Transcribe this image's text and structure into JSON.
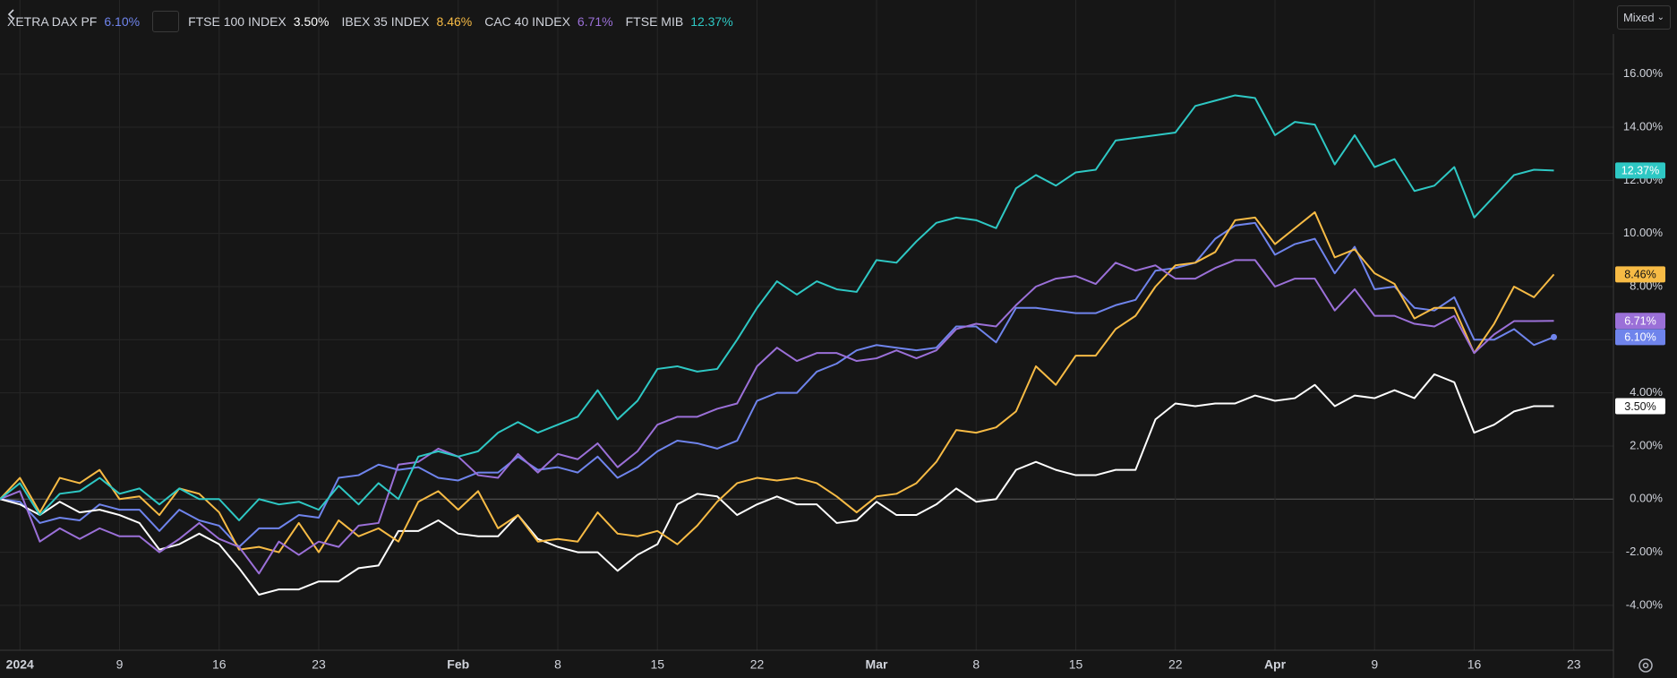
{
  "toolbar": {
    "mode": "Mixed"
  },
  "chart_data": {
    "type": "line",
    "categories": [
      null,
      "2024",
      null,
      null,
      null,
      null,
      "9",
      null,
      null,
      null,
      null,
      "16",
      null,
      null,
      null,
      null,
      "23",
      null,
      null,
      null,
      null,
      null,
      null,
      "Feb",
      null,
      null,
      null,
      null,
      "8",
      null,
      null,
      null,
      null,
      "15",
      null,
      null,
      null,
      null,
      "22",
      null,
      null,
      null,
      null,
      null,
      "Mar",
      null,
      null,
      null,
      null,
      "8",
      null,
      null,
      null,
      null,
      "15",
      null,
      null,
      null,
      null,
      "22",
      null,
      null,
      null,
      null,
      "Apr",
      null,
      null,
      null,
      null,
      "9",
      null,
      null,
      null,
      null,
      "16",
      null,
      null,
      null,
      null,
      "23"
    ],
    "ylim": [
      -5.69,
      18.79
    ],
    "yticks": [
      {
        "value": -4,
        "label": "-4.00%"
      },
      {
        "value": -2,
        "label": "-2.00%"
      },
      {
        "value": 0,
        "label": "0.00%"
      },
      {
        "value": 2,
        "label": "2.00%"
      },
      {
        "value": 4,
        "label": "4.00%"
      },
      {
        "value": 6,
        "label": "6.00%"
      },
      {
        "value": 8,
        "label": "8.00%"
      },
      {
        "value": 10,
        "label": "10.00%"
      },
      {
        "value": 12,
        "label": "12.00%"
      },
      {
        "value": 14,
        "label": "14.00%"
      },
      {
        "value": 16,
        "label": "16.00%"
      }
    ],
    "grid": true,
    "series": [
      {
        "name": "XETRA DAX PF",
        "color": "#6f84ec",
        "values": [
          0,
          -0.1,
          -0.9,
          -0.7,
          -0.8,
          -0.2,
          -0.4,
          -0.4,
          -1.2,
          -0.4,
          -0.8,
          -1.0,
          -1.8,
          -1.1,
          -1.1,
          -0.6,
          -0.7,
          0.8,
          0.9,
          1.3,
          1.1,
          1.2,
          0.8,
          0.7,
          1.0,
          1.0,
          1.6,
          1.1,
          1.2,
          1.0,
          1.6,
          0.8,
          1.2,
          1.8,
          2.2,
          2.1,
          1.9,
          2.2,
          3.7,
          4.0,
          4.0,
          4.8,
          5.1,
          5.6,
          5.8,
          5.7,
          5.6,
          5.7,
          6.5,
          6.5,
          5.9,
          7.2,
          7.2,
          7.1,
          7.0,
          7.0,
          7.3,
          7.5,
          8.6,
          8.7,
          8.9,
          9.8,
          10.3,
          10.4,
          9.2,
          9.6,
          9.8,
          8.5,
          9.5,
          7.9,
          8.0,
          7.2,
          7.1,
          7.6,
          6.0,
          6.0,
          6.4,
          5.8,
          6.1,
          null
        ],
        "value_labels": [
          null,
          null,
          null,
          null,
          null,
          null,
          null,
          null,
          null,
          null,
          null,
          null,
          null,
          null,
          null,
          null,
          null,
          null,
          null,
          null,
          null,
          null,
          null,
          null,
          null,
          null,
          null,
          null,
          null,
          null,
          null,
          null,
          null,
          null,
          null,
          null,
          null,
          null,
          null,
          null,
          null,
          null,
          null,
          null,
          null,
          null,
          null,
          null,
          null,
          null,
          null,
          null,
          null,
          null,
          null,
          null,
          null,
          null,
          null,
          null,
          null,
          null,
          null,
          null,
          null,
          null,
          null,
          null,
          null,
          null,
          null,
          null,
          null,
          null,
          null,
          null,
          null,
          null,
          "6.10%",
          null
        ]
      },
      {
        "name": "FTSE 100 INDEX",
        "color": "#ffffff",
        "values": [
          0,
          -0.2,
          -0.6,
          -0.1,
          -0.5,
          -0.4,
          -0.6,
          -0.9,
          -1.9,
          -1.7,
          -1.3,
          -1.7,
          -2.6,
          -3.6,
          -3.4,
          -3.4,
          -3.1,
          -3.1,
          -2.6,
          -2.5,
          -1.2,
          -1.2,
          -0.8,
          -1.3,
          -1.4,
          -1.4,
          -0.6,
          -1.5,
          -1.8,
          -2.0,
          -2.0,
          -2.7,
          -2.1,
          -1.7,
          -0.2,
          0.2,
          0.1,
          -0.6,
          -0.2,
          0.1,
          -0.2,
          -0.2,
          -0.9,
          -0.8,
          -0.1,
          -0.6,
          -0.6,
          -0.2,
          0.4,
          -0.1,
          0.0,
          1.1,
          1.4,
          1.1,
          0.9,
          0.9,
          1.1,
          1.1,
          3.0,
          3.6,
          3.5,
          3.6,
          3.6,
          3.9,
          3.7,
          3.8,
          4.3,
          3.5,
          3.9,
          3.8,
          4.1,
          3.8,
          4.7,
          4.4,
          2.5,
          2.8,
          3.3,
          3.5,
          3.5,
          null
        ],
        "value_labels": [
          null,
          null,
          null,
          null,
          null,
          null,
          null,
          null,
          null,
          null,
          null,
          null,
          null,
          null,
          null,
          null,
          null,
          null,
          null,
          null,
          null,
          null,
          null,
          null,
          null,
          null,
          null,
          null,
          null,
          null,
          null,
          null,
          null,
          null,
          null,
          null,
          null,
          null,
          null,
          null,
          null,
          null,
          null,
          null,
          null,
          null,
          null,
          null,
          null,
          null,
          null,
          null,
          null,
          null,
          null,
          null,
          null,
          null,
          null,
          null,
          null,
          null,
          null,
          null,
          null,
          null,
          null,
          null,
          null,
          null,
          null,
          null,
          null,
          null,
          null,
          null,
          null,
          null,
          "3.50%",
          null
        ]
      },
      {
        "name": "IBEX 35 INDEX",
        "color": "#f7bb45",
        "values": [
          0,
          0.8,
          -0.5,
          0.8,
          0.6,
          1.1,
          0.0,
          0.1,
          -0.6,
          0.4,
          0.2,
          -0.5,
          -1.9,
          -1.8,
          -2.0,
          -0.9,
          -2.0,
          -0.8,
          -1.4,
          -1.1,
          -1.6,
          -0.1,
          0.3,
          -0.4,
          0.3,
          -1.1,
          -0.6,
          -1.6,
          -1.5,
          -1.6,
          -0.5,
          -1.3,
          -1.4,
          -1.2,
          -1.7,
          -1.0,
          -0.1,
          0.6,
          0.8,
          0.7,
          0.8,
          0.6,
          0.1,
          -0.5,
          0.1,
          0.2,
          0.6,
          1.4,
          2.6,
          2.5,
          2.7,
          3.3,
          5.0,
          4.3,
          5.4,
          5.4,
          6.4,
          6.9,
          8.0,
          8.8,
          8.9,
          9.3,
          10.5,
          10.6,
          9.6,
          10.2,
          10.8,
          9.1,
          9.4,
          8.5,
          8.1,
          6.8,
          7.2,
          7.2,
          5.5,
          6.6,
          8.0,
          7.6,
          8.46,
          null
        ],
        "value_labels": [
          null,
          null,
          null,
          null,
          null,
          null,
          null,
          null,
          null,
          null,
          null,
          null,
          null,
          null,
          null,
          null,
          null,
          null,
          null,
          null,
          null,
          null,
          null,
          null,
          null,
          null,
          null,
          null,
          null,
          null,
          null,
          null,
          null,
          null,
          null,
          null,
          null,
          null,
          null,
          null,
          null,
          null,
          null,
          null,
          null,
          null,
          null,
          null,
          null,
          null,
          null,
          null,
          null,
          null,
          null,
          null,
          null,
          null,
          null,
          null,
          null,
          null,
          null,
          null,
          null,
          null,
          null,
          null,
          null,
          null,
          null,
          null,
          null,
          null,
          null,
          null,
          null,
          null,
          "8.46%",
          null
        ]
      },
      {
        "name": "CAC 40 INDEX",
        "color": "#9b70d8",
        "values": [
          0,
          0.3,
          -1.6,
          -1.1,
          -1.5,
          -1.1,
          -1.4,
          -1.4,
          -2.0,
          -1.5,
          -0.9,
          -1.5,
          -1.8,
          -2.8,
          -1.6,
          -2.1,
          -1.6,
          -1.8,
          -1.0,
          -0.9,
          1.3,
          1.4,
          1.9,
          1.6,
          0.9,
          0.8,
          1.7,
          1.0,
          1.7,
          1.5,
          2.1,
          1.2,
          1.8,
          2.8,
          3.1,
          3.1,
          3.4,
          3.6,
          5.0,
          5.7,
          5.2,
          5.5,
          5.5,
          5.2,
          5.3,
          5.6,
          5.3,
          5.6,
          6.4,
          6.6,
          6.5,
          7.3,
          8.0,
          8.3,
          8.4,
          8.1,
          8.9,
          8.6,
          8.8,
          8.3,
          8.3,
          8.7,
          9.0,
          9.0,
          8.0,
          8.3,
          8.3,
          7.1,
          7.9,
          6.9,
          6.9,
          6.6,
          6.5,
          6.9,
          5.5,
          6.2,
          6.7,
          6.7,
          6.71,
          null
        ],
        "value_labels": [
          null,
          null,
          null,
          null,
          null,
          null,
          null,
          null,
          null,
          null,
          null,
          null,
          null,
          null,
          null,
          null,
          null,
          null,
          null,
          null,
          null,
          null,
          null,
          null,
          null,
          null,
          null,
          null,
          null,
          null,
          null,
          null,
          null,
          null,
          null,
          null,
          null,
          null,
          null,
          null,
          null,
          null,
          null,
          null,
          null,
          null,
          null,
          null,
          null,
          null,
          null,
          null,
          null,
          null,
          null,
          null,
          null,
          null,
          null,
          null,
          null,
          null,
          null,
          null,
          null,
          null,
          null,
          null,
          null,
          null,
          null,
          null,
          null,
          null,
          null,
          null,
          null,
          null,
          "6.71%",
          null
        ]
      },
      {
        "name": "FTSE MIB",
        "color": "#2ec8c4",
        "values": [
          0,
          0.6,
          -0.6,
          0.2,
          0.3,
          0.8,
          0.2,
          0.4,
          -0.2,
          0.4,
          0.0,
          0.0,
          -0.8,
          0.0,
          -0.2,
          -0.1,
          -0.4,
          0.5,
          -0.2,
          0.6,
          0.0,
          1.6,
          1.8,
          1.6,
          1.8,
          2.5,
          2.9,
          2.5,
          2.8,
          3.1,
          4.1,
          3.0,
          3.7,
          4.9,
          5.0,
          4.8,
          4.9,
          6.0,
          7.2,
          8.2,
          7.7,
          8.2,
          7.9,
          7.8,
          9.0,
          8.9,
          9.7,
          10.4,
          10.6,
          10.5,
          10.2,
          11.7,
          12.2,
          11.8,
          12.3,
          12.4,
          13.5,
          13.6,
          13.7,
          13.8,
          14.8,
          15.0,
          15.2,
          15.1,
          13.7,
          14.2,
          14.1,
          12.6,
          13.7,
          12.5,
          12.8,
          11.6,
          11.8,
          12.5,
          10.6,
          11.4,
          12.2,
          12.4,
          12.37,
          null
        ],
        "value_labels": [
          null,
          null,
          null,
          null,
          null,
          null,
          null,
          null,
          null,
          null,
          null,
          null,
          null,
          null,
          null,
          null,
          null,
          null,
          null,
          null,
          null,
          null,
          null,
          null,
          null,
          null,
          null,
          null,
          null,
          null,
          null,
          null,
          null,
          null,
          null,
          null,
          null,
          null,
          null,
          null,
          null,
          null,
          null,
          null,
          null,
          null,
          null,
          null,
          null,
          null,
          null,
          null,
          null,
          null,
          null,
          null,
          null,
          null,
          null,
          null,
          null,
          null,
          null,
          null,
          null,
          null,
          null,
          null,
          null,
          null,
          null,
          null,
          null,
          null,
          null,
          null,
          null,
          null,
          "12.37%",
          null
        ]
      }
    ]
  }
}
